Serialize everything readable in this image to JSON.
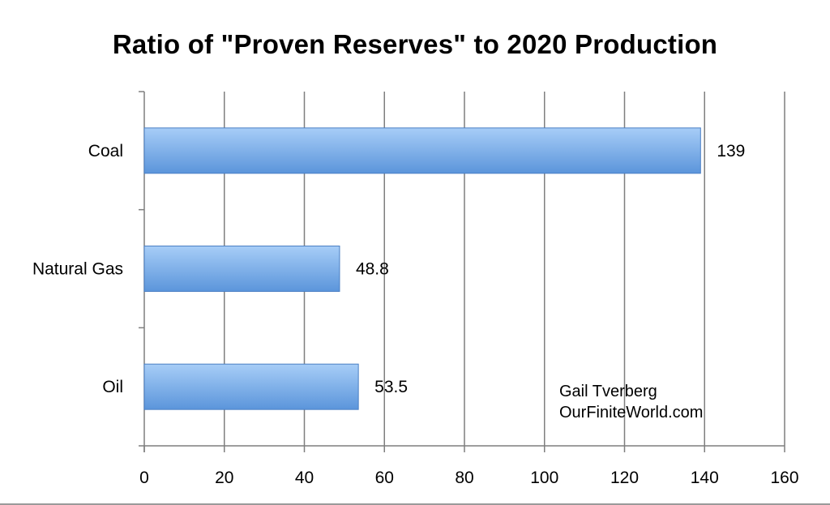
{
  "chart_data": {
    "type": "bar",
    "orientation": "horizontal",
    "title": "Ratio of \"Proven Reserves\" to 2020 Production",
    "xlabel": "",
    "ylabel": "",
    "categories": [
      "Coal",
      "Natural Gas",
      "Oil"
    ],
    "values": [
      139,
      48.8,
      53.5
    ],
    "value_labels": [
      "139",
      "48.8",
      "53.5"
    ],
    "xlim": [
      0,
      160
    ],
    "x_ticks": [
      0,
      20,
      40,
      60,
      80,
      100,
      120,
      140,
      160
    ],
    "grid": "vertical",
    "legend": "none",
    "annotation": {
      "line1": "Gail Tverberg",
      "line2": "OurFiniteWorld.com"
    },
    "colors": {
      "bar_top": "#a7cdf7",
      "bar_bottom": "#5b95db",
      "bar_edge": "#4a7fc4",
      "grid": "#7f7f7f",
      "axis": "#7f7f7f",
      "text": "#000000"
    }
  }
}
